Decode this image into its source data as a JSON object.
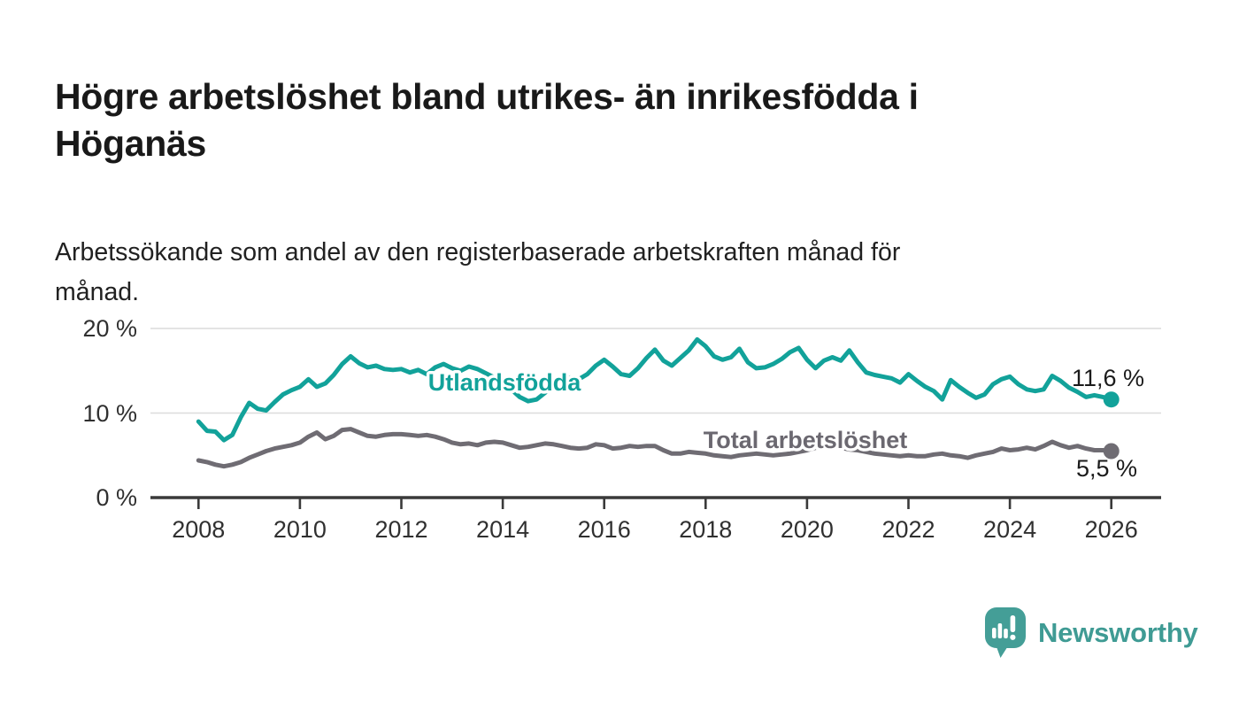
{
  "title": "Högre arbetslöshet bland utrikes- än inrikesfödda i\nHöganäs",
  "subtitle": "Arbetssökande som andel av den registerbaserade arbetskraften månad för\nmånad.",
  "branding": {
    "logo_text": "Newsworthy",
    "logo_icon": "newsworthy-speech-bubble-bar-chart-icon",
    "logo_color": "#3f9b94",
    "logo_mark_color": "#449e97"
  },
  "colors": {
    "title_text": "#191919",
    "axis_text": "#303030",
    "gridline": "#dcdcdc",
    "axis_line": "#3a3a3a",
    "end_label_text": "#1b1b1b"
  },
  "chart_data": {
    "type": "line",
    "title": "Högre arbetslöshet bland utrikes- än inrikesfödda i Höganäs",
    "subtitle": "Arbetssökande som andel av den registerbaserade arbetskraften månad för månad.",
    "xlabel": "",
    "ylabel": "",
    "grid": "horizontal",
    "ylim": [
      0,
      21
    ],
    "x_start": 2008,
    "x_step_years": 0.1666667,
    "x_ticks": [
      2008,
      2010,
      2012,
      2014,
      2016,
      2018,
      2020,
      2022,
      2024,
      2026
    ],
    "y_ticks": [
      {
        "value": 0,
        "label": "0 %"
      },
      {
        "value": 10,
        "label": "10 %"
      },
      {
        "value": 20,
        "label": "20 %"
      }
    ],
    "series": [
      {
        "name": "Utlandsfödda",
        "color": "#12a29a",
        "end_label": "11,6 %",
        "end_value": 11.6,
        "values": [
          9.0,
          7.9,
          7.8,
          6.8,
          7.4,
          9.5,
          11.2,
          10.5,
          10.3,
          11.3,
          12.2,
          12.7,
          13.1,
          14.0,
          13.1,
          13.5,
          14.5,
          15.8,
          16.7,
          15.9,
          15.4,
          15.6,
          15.2,
          15.1,
          15.2,
          14.8,
          15.1,
          14.6,
          15.4,
          15.8,
          15.3,
          15.0,
          15.5,
          15.2,
          14.7,
          14.2,
          13.6,
          12.8,
          11.9,
          11.4,
          11.6,
          12.4,
          13.2,
          13.8,
          14.2,
          14.0,
          14.6,
          15.6,
          16.3,
          15.5,
          14.6,
          14.4,
          15.3,
          16.5,
          17.5,
          16.2,
          15.6,
          16.5,
          17.4,
          18.7,
          17.9,
          16.7,
          16.3,
          16.6,
          17.6,
          16.0,
          15.3,
          15.4,
          15.8,
          16.4,
          17.2,
          17.7,
          16.3,
          15.3,
          16.2,
          16.6,
          16.2,
          17.4,
          16.0,
          14.8,
          14.5,
          14.3,
          14.1,
          13.6,
          14.6,
          13.8,
          13.1,
          12.6,
          11.6,
          13.9,
          13.1,
          12.4,
          11.8,
          12.2,
          13.4,
          14.0,
          14.3,
          13.4,
          12.8,
          12.6,
          12.8,
          14.4,
          13.8,
          13.0,
          12.5,
          11.9,
          12.1,
          11.9,
          11.6
        ]
      },
      {
        "name": "Total arbetslöshet",
        "color": "#6f6c73",
        "end_label": "5,5 %",
        "end_value": 5.5,
        "values": [
          4.4,
          4.2,
          3.9,
          3.7,
          3.9,
          4.2,
          4.7,
          5.1,
          5.5,
          5.8,
          6.0,
          6.2,
          6.5,
          7.2,
          7.7,
          6.9,
          7.3,
          8.0,
          8.1,
          7.7,
          7.3,
          7.2,
          7.4,
          7.5,
          7.5,
          7.4,
          7.3,
          7.4,
          7.2,
          6.9,
          6.5,
          6.3,
          6.4,
          6.2,
          6.5,
          6.6,
          6.5,
          6.2,
          5.9,
          6.0,
          6.2,
          6.4,
          6.3,
          6.1,
          5.9,
          5.8,
          5.9,
          6.3,
          6.2,
          5.8,
          5.9,
          6.1,
          6.0,
          6.1,
          6.1,
          5.6,
          5.2,
          5.2,
          5.4,
          5.3,
          5.2,
          5.0,
          4.9,
          4.8,
          5.0,
          5.1,
          5.2,
          5.1,
          5.0,
          5.1,
          5.2,
          5.4,
          5.6,
          5.9,
          6.1,
          6.0,
          5.9,
          5.7,
          5.6,
          5.4,
          5.2,
          5.1,
          5.0,
          4.9,
          5.0,
          4.9,
          4.9,
          5.1,
          5.2,
          5.0,
          4.9,
          4.7,
          5.0,
          5.2,
          5.4,
          5.8,
          5.6,
          5.7,
          5.9,
          5.7,
          6.1,
          6.6,
          6.2,
          5.9,
          6.1,
          5.8,
          5.6,
          5.6,
          5.5
        ]
      }
    ]
  }
}
